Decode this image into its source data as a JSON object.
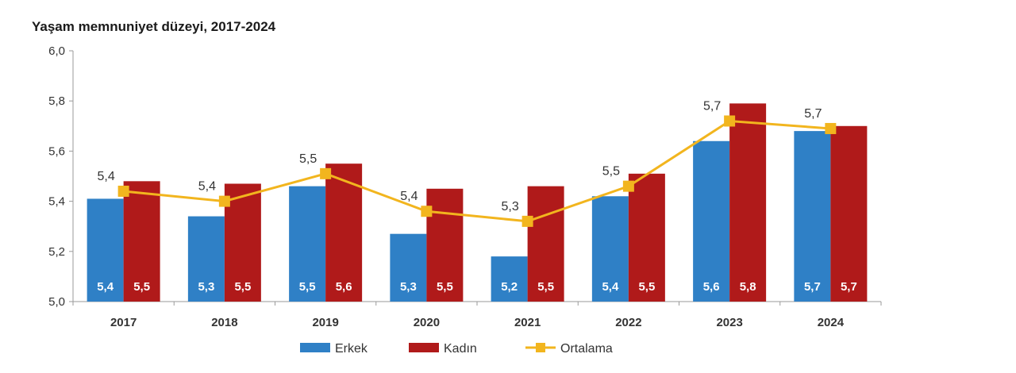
{
  "chart_data": {
    "type": "bar",
    "title": "Yaşam memnuniyet düzeyi, 2017-2024",
    "categories": [
      "2017",
      "2018",
      "2019",
      "2020",
      "2021",
      "2022",
      "2023",
      "2024"
    ],
    "ylim": [
      5.0,
      6.0
    ],
    "yticks": [
      "5,0",
      "5,2",
      "5,4",
      "5,6",
      "5,8",
      "6,0"
    ],
    "ytick_values": [
      5.0,
      5.2,
      5.4,
      5.6,
      5.8,
      6.0
    ],
    "series": [
      {
        "name": "Erkek",
        "kind": "bar",
        "color": "#2f80c6",
        "values": [
          5.41,
          5.34,
          5.46,
          5.27,
          5.18,
          5.42,
          5.64,
          5.68
        ],
        "labels": [
          "5,4",
          "5,3",
          "5,5",
          "5,3",
          "5,2",
          "5,4",
          "5,6",
          "5,7"
        ]
      },
      {
        "name": "Kadın",
        "kind": "bar",
        "color": "#b01a1a",
        "values": [
          5.48,
          5.47,
          5.55,
          5.45,
          5.46,
          5.51,
          5.79,
          5.7
        ],
        "labels": [
          "5,5",
          "5,5",
          "5,6",
          "5,5",
          "5,5",
          "5,5",
          "5,8",
          "5,7"
        ]
      },
      {
        "name": "Ortalama",
        "kind": "line",
        "color": "#f2b51e",
        "values": [
          5.44,
          5.4,
          5.51,
          5.36,
          5.32,
          5.46,
          5.72,
          5.69
        ],
        "labels": [
          "5,4",
          "5,4",
          "5,5",
          "5,4",
          "5,3",
          "5,5",
          "5,7",
          "5,7"
        ]
      }
    ],
    "grid": false,
    "legend": "bottom"
  }
}
